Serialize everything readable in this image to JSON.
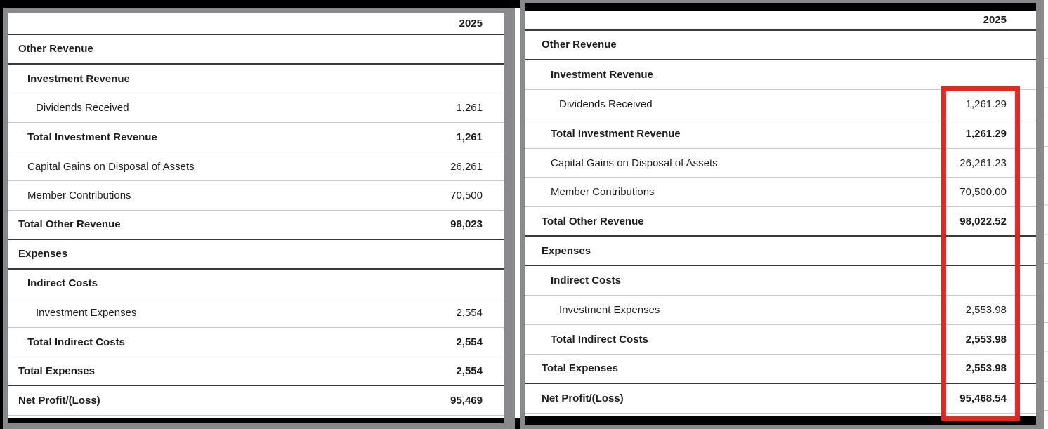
{
  "report": {
    "description_note": "",
    "panels": [
      {
        "name": "rounded-values",
        "year": "2025",
        "rows": [
          {
            "label": "Other Revenue",
            "value": "",
            "bold": true,
            "indent": 0,
            "sep": "thick"
          },
          {
            "label": "Investment Revenue",
            "value": "",
            "bold": true,
            "indent": 1,
            "sep": "light"
          },
          {
            "label": "Dividends Received",
            "value": "1,261",
            "bold": false,
            "indent": 2,
            "sep": "light"
          },
          {
            "label": "Total Investment Revenue",
            "value": "1,261",
            "bold": true,
            "indent": 1,
            "sep": "light"
          },
          {
            "label": "Capital Gains on Disposal of Assets",
            "value": "26,261",
            "bold": false,
            "indent": 1,
            "sep": "light"
          },
          {
            "label": "Member Contributions",
            "value": "70,500",
            "bold": false,
            "indent": 1,
            "sep": "light"
          },
          {
            "label": "Total Other Revenue",
            "value": "98,023",
            "bold": true,
            "indent": 0,
            "sep": "thick"
          },
          {
            "label": "Expenses",
            "value": "",
            "bold": true,
            "indent": 0,
            "sep": "thick"
          },
          {
            "label": "Indirect Costs",
            "value": "",
            "bold": true,
            "indent": 1,
            "sep": "light"
          },
          {
            "label": "Investment Expenses",
            "value": "2,554",
            "bold": false,
            "indent": 2,
            "sep": "light"
          },
          {
            "label": "Total Indirect Costs",
            "value": "2,554",
            "bold": true,
            "indent": 1,
            "sep": "light"
          },
          {
            "label": "Total Expenses",
            "value": "2,554",
            "bold": true,
            "indent": 0,
            "sep": "thick"
          },
          {
            "label": "Net Profit/(Loss)",
            "value": "95,469",
            "bold": true,
            "indent": 0,
            "sep": "light"
          }
        ]
      },
      {
        "name": "decimal-values-highlighted",
        "year": "2025",
        "highlighted_column": true,
        "rows": [
          {
            "label": "Other Revenue",
            "value": "",
            "bold": true,
            "indent": 0,
            "sep": "thick"
          },
          {
            "label": "Investment Revenue",
            "value": "",
            "bold": true,
            "indent": 1,
            "sep": "light"
          },
          {
            "label": "Dividends Received",
            "value": "1,261.29",
            "bold": false,
            "indent": 2,
            "sep": "light"
          },
          {
            "label": "Total Investment Revenue",
            "value": "1,261.29",
            "bold": true,
            "indent": 1,
            "sep": "light"
          },
          {
            "label": "Capital Gains on Disposal of Assets",
            "value": "26,261.23",
            "bold": false,
            "indent": 1,
            "sep": "light"
          },
          {
            "label": "Member Contributions",
            "value": "70,500.00",
            "bold": false,
            "indent": 1,
            "sep": "light"
          },
          {
            "label": "Total Other Revenue",
            "value": "98,022.52",
            "bold": true,
            "indent": 0,
            "sep": "thick"
          },
          {
            "label": "Expenses",
            "value": "",
            "bold": true,
            "indent": 0,
            "sep": "thick"
          },
          {
            "label": "Indirect Costs",
            "value": "",
            "bold": true,
            "indent": 1,
            "sep": "light"
          },
          {
            "label": "Investment Expenses",
            "value": "2,553.98",
            "bold": false,
            "indent": 2,
            "sep": "light"
          },
          {
            "label": "Total Indirect Costs",
            "value": "2,553.98",
            "bold": true,
            "indent": 1,
            "sep": "light"
          },
          {
            "label": "Total Expenses",
            "value": "2,553.98",
            "bold": true,
            "indent": 0,
            "sep": "thick"
          },
          {
            "label": "Net Profit/(Loss)",
            "value": "95,468.54",
            "bold": true,
            "indent": 0,
            "sep": "light"
          }
        ]
      }
    ]
  },
  "colors": {
    "frame_gray": "#88898b",
    "highlight_red": "#e12a22",
    "thick_line": "#3a3a3a",
    "light_line": "#c9c9c9",
    "text": "#1e1e1e",
    "black": "#000000",
    "white": "#ffffff"
  }
}
